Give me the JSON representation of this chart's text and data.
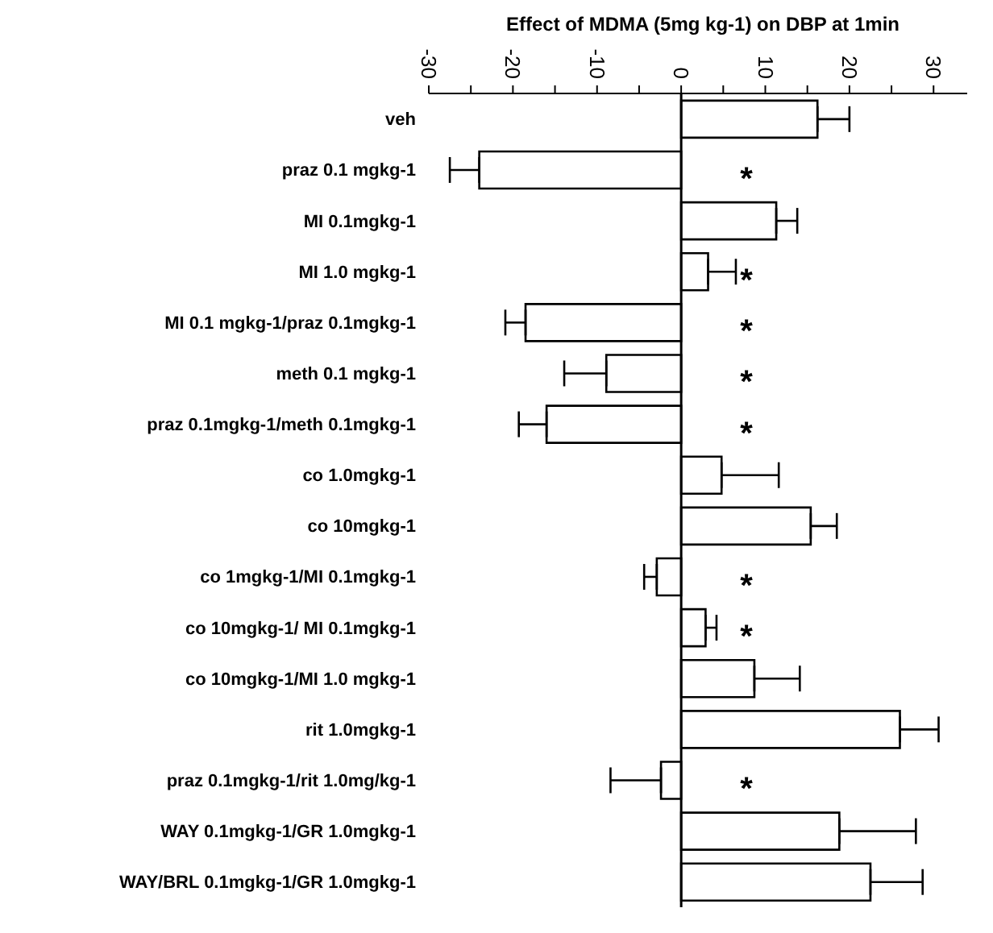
{
  "chart_data": {
    "type": "bar",
    "orientation": "horizontal",
    "title": "Effect of MDMA (5mg kg-1)  on DBP at 1min",
    "categories": [
      "veh",
      "praz 0.1 mgkg-1",
      "MI 0.1mgkg-1",
      "MI 1.0 mgkg-1",
      "MI 0.1 mgkg-1/praz 0.1mgkg-1",
      "meth 0.1 mgkg-1",
      "praz 0.1mgkg-1/meth 0.1mgkg-1",
      "co 1.0mgkg-1",
      "co 10mgkg-1",
      "co 1mgkg-1/MI 0.1mgkg-1",
      "co 10mgkg-1/ MI 0.1mgkg-1",
      "co 10mgkg-1/MI 1.0 mgkg-1",
      "rit 1.0mgkg-1",
      "praz 0.1mgkg-1/rit 1.0mg/kg-1",
      "WAY 0.1mgkg-1/GR 1.0mgkg-1",
      "WAY/BRL 0.1mgkg-1/GR 1.0mgkg-1"
    ],
    "values": [
      16.2,
      -24.0,
      11.3,
      3.2,
      -18.5,
      -8.9,
      -16.0,
      4.8,
      15.4,
      -2.9,
      2.9,
      8.7,
      26.0,
      -2.4,
      18.8,
      22.5
    ],
    "errors": [
      [
        16.2,
        20.0
      ],
      [
        -27.5,
        -24.0
      ],
      [
        11.3,
        13.8
      ],
      [
        3.2,
        6.5
      ],
      [
        -20.9,
        -18.5
      ],
      [
        -13.9,
        -8.9
      ],
      [
        -19.3,
        -16.0
      ],
      [
        4.8,
        11.6
      ],
      [
        15.4,
        18.5
      ],
      [
        -4.4,
        -2.9
      ],
      [
        2.9,
        4.2
      ],
      [
        8.7,
        14.1
      ],
      [
        26.0,
        30.6
      ],
      [
        -8.4,
        -2.4
      ],
      [
        18.8,
        27.9
      ],
      [
        22.5,
        28.7
      ]
    ],
    "color": "#ffffff",
    "xlim": [
      -30,
      34
    ],
    "xticks": [
      -30,
      {
        "value": -25,
        "label": null
      },
      -20,
      {
        "value": -15,
        "label": null
      },
      -10,
      {
        "value": -5,
        "label": null
      },
      0,
      {
        "value": 5,
        "label": null
      },
      10,
      {
        "value": 15,
        "label": null
      },
      20,
      {
        "value": 25,
        "label": null
      },
      30
    ],
    "ref_lines": [
      {
        "axis": "x",
        "value": 0,
        "label": null
      }
    ],
    "value_labels": [
      null,
      "*",
      null,
      "*",
      "*",
      "*",
      "*",
      null,
      null,
      "*",
      "*",
      null,
      null,
      "*",
      null,
      null
    ],
    "grid": false,
    "legend": false
  }
}
